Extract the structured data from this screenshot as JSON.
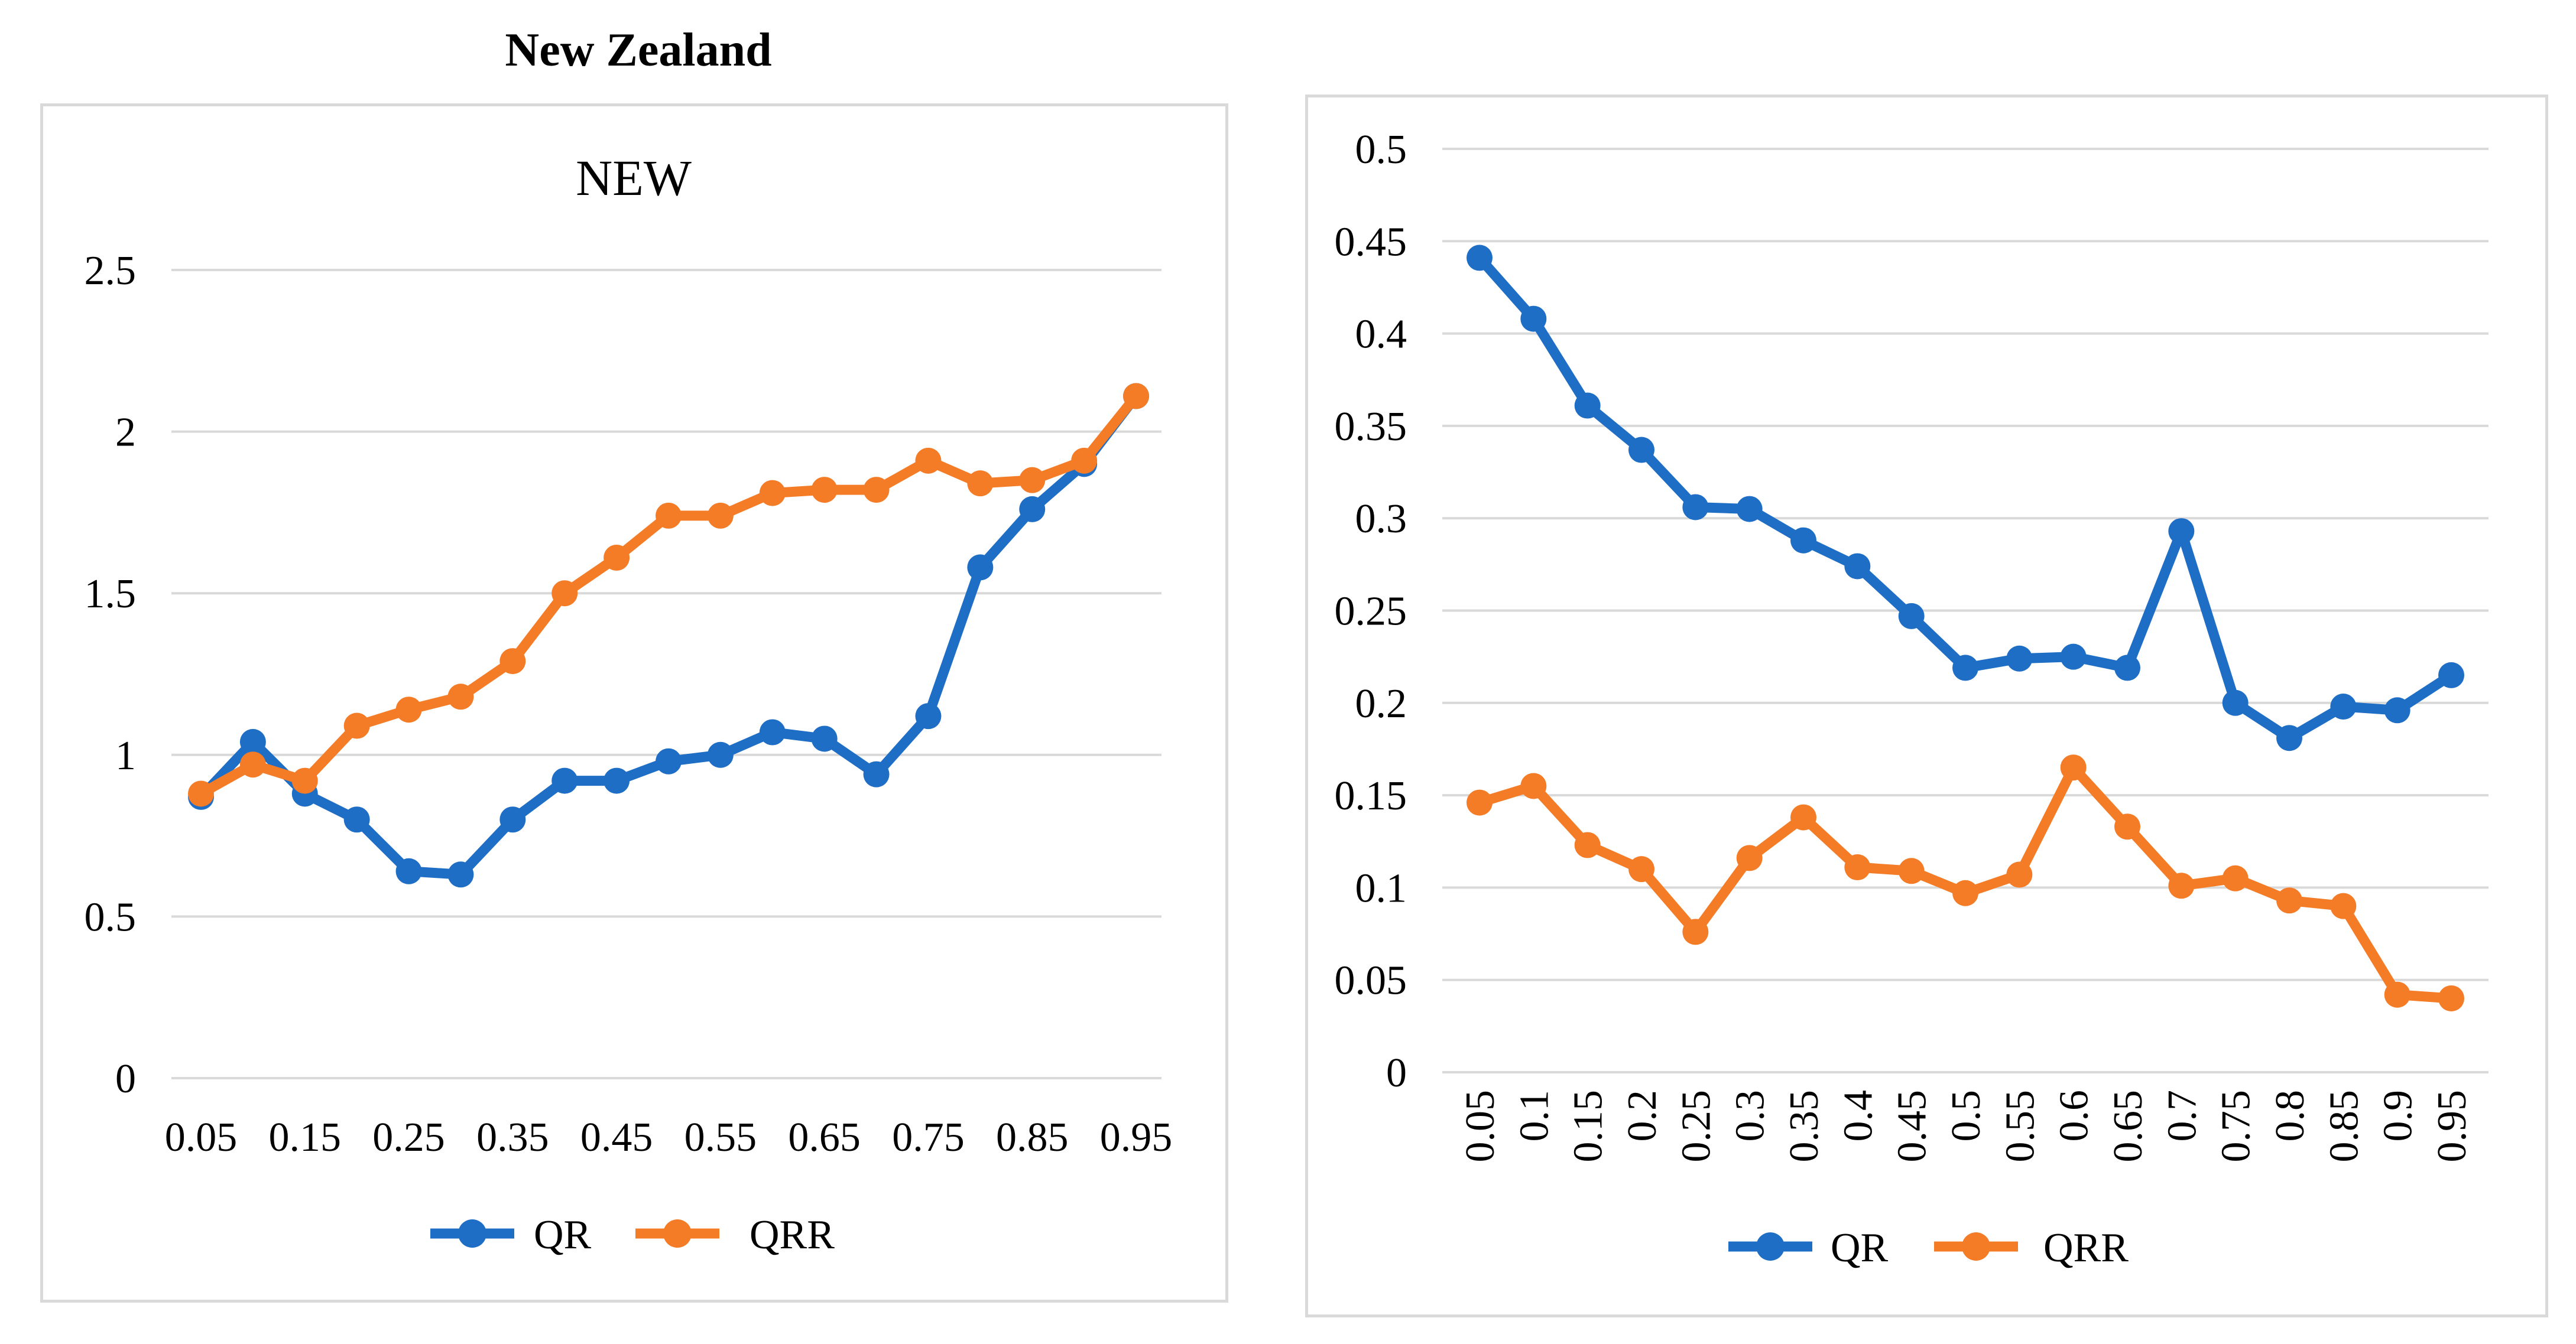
{
  "heading": "New Zealand",
  "colors": {
    "qr": "#1F6EC5",
    "qrr": "#F47C27",
    "grid": "#d9d9d9"
  },
  "chart_data": [
    {
      "type": "line",
      "title": "NEW",
      "categories": [
        "0.05",
        "0.1",
        "0.15",
        "0.2",
        "0.25",
        "0.3",
        "0.35",
        "0.4",
        "0.45",
        "0.5",
        "0.55",
        "0.6",
        "0.65",
        "0.7",
        "0.75",
        "0.8",
        "0.85",
        "0.9",
        "0.95"
      ],
      "category_tick_labels": [
        "0.05",
        "0.15",
        "0.25",
        "0.35",
        "0.45",
        "0.55",
        "0.65",
        "0.75",
        "0.85",
        "0.95"
      ],
      "y_ticks": [
        "0",
        "0.5",
        "1",
        "1.5",
        "2",
        "2.5"
      ],
      "ylim": [
        0,
        2.5
      ],
      "legend_position": "bottom",
      "series": [
        {
          "name": "QR",
          "values": [
            0.87,
            1.04,
            0.88,
            0.8,
            0.64,
            0.63,
            0.8,
            0.92,
            0.92,
            0.98,
            1.0,
            1.07,
            1.05,
            0.94,
            1.12,
            1.58,
            1.76,
            1.9,
            2.11
          ]
        },
        {
          "name": "QRR",
          "values": [
            0.88,
            0.97,
            0.92,
            1.09,
            1.14,
            1.18,
            1.29,
            1.5,
            1.61,
            1.74,
            1.74,
            1.81,
            1.82,
            1.82,
            1.91,
            1.84,
            1.85,
            1.91,
            2.11
          ]
        }
      ]
    },
    {
      "type": "line",
      "title": "",
      "categories": [
        "0.05",
        "0.1",
        "0.15",
        "0.2",
        "0.25",
        "0.3",
        "0.35",
        "0.4",
        "0.45",
        "0.5",
        "0.55",
        "0.6",
        "0.65",
        "0.7",
        "0.75",
        "0.8",
        "0.85",
        "0.9",
        "0.95"
      ],
      "y_ticks": [
        "0",
        "0.05",
        "0.1",
        "0.15",
        "0.2",
        "0.25",
        "0.3",
        "0.35",
        "0.4",
        "0.45",
        "0.5"
      ],
      "ylim": [
        0,
        0.5
      ],
      "x_tick_rotation": "vertical",
      "legend_position": "bottom",
      "series": [
        {
          "name": "QR",
          "values": [
            0.441,
            0.408,
            0.361,
            0.337,
            0.306,
            0.305,
            0.288,
            0.274,
            0.247,
            0.219,
            0.224,
            0.225,
            0.219,
            0.293,
            0.2,
            0.181,
            0.198,
            0.196,
            0.215
          ]
        },
        {
          "name": "QRR",
          "values": [
            0.146,
            0.155,
            0.123,
            0.11,
            0.076,
            0.116,
            0.138,
            0.111,
            0.109,
            0.097,
            0.107,
            0.165,
            0.133,
            0.101,
            0.105,
            0.093,
            0.09,
            0.042,
            0.04
          ]
        }
      ]
    }
  ]
}
